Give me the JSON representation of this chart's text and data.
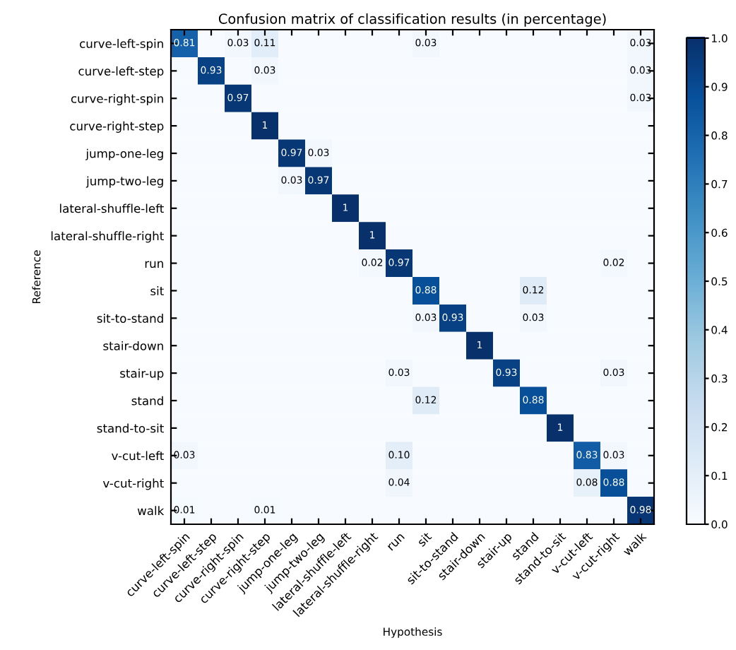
{
  "chart_data": {
    "type": "heatmap",
    "title": "Confusion matrix of classification results (in percentage)",
    "xlabel": "Hypothesis",
    "ylabel": "Reference",
    "categories": [
      "curve-left-spin",
      "curve-left-step",
      "curve-right-spin",
      "curve-right-step",
      "jump-one-leg",
      "jump-two-leg",
      "lateral-shuffle-left",
      "lateral-shuffle-right",
      "run",
      "sit",
      "sit-to-stand",
      "stair-down",
      "stair-up",
      "stand",
      "stand-to-sit",
      "v-cut-left",
      "v-cut-right",
      "walk"
    ],
    "y_categories": [
      "curve-left-spin",
      "curve-left-step",
      "curve-right-spin",
      "curve-right-step",
      "jump-one-leg",
      "jump-two-leg",
      "lateral-shuffle-left",
      "lateral-shuffle-right",
      "run",
      "sit",
      "sit-to-stand",
      "stair-down",
      "stair-up",
      "stand",
      "stand-to-sit",
      "v-cut-left",
      "v-cut-right",
      "walk"
    ],
    "cells": [
      [
        0.81,
        0,
        0.03,
        0.11,
        0,
        0,
        0,
        0,
        0,
        0.03,
        0,
        0,
        0,
        0,
        0,
        0,
        0,
        0.03
      ],
      [
        0,
        0.93,
        0,
        0.03,
        0,
        0,
        0,
        0,
        0,
        0,
        0,
        0,
        0,
        0,
        0,
        0,
        0,
        0.03
      ],
      [
        0,
        0,
        0.97,
        0,
        0,
        0,
        0,
        0,
        0,
        0,
        0,
        0,
        0,
        0,
        0,
        0,
        0,
        0.03
      ],
      [
        0,
        0,
        0,
        1,
        0,
        0,
        0,
        0,
        0,
        0,
        0,
        0,
        0,
        0,
        0,
        0,
        0,
        0
      ],
      [
        0,
        0,
        0,
        0,
        0.97,
        0.03,
        0,
        0,
        0,
        0,
        0,
        0,
        0,
        0,
        0,
        0,
        0,
        0
      ],
      [
        0,
        0,
        0,
        0,
        0.03,
        0.97,
        0,
        0,
        0,
        0,
        0,
        0,
        0,
        0,
        0,
        0,
        0,
        0
      ],
      [
        0,
        0,
        0,
        0,
        0,
        0,
        1,
        0,
        0,
        0,
        0,
        0,
        0,
        0,
        0,
        0,
        0,
        0
      ],
      [
        0,
        0,
        0,
        0,
        0,
        0,
        0,
        1,
        0,
        0,
        0,
        0,
        0,
        0,
        0,
        0,
        0,
        0
      ],
      [
        0,
        0,
        0,
        0,
        0,
        0,
        0,
        0.02,
        0.97,
        0,
        0,
        0,
        0,
        0,
        0,
        0,
        0.02,
        0
      ],
      [
        0,
        0,
        0,
        0,
        0,
        0,
        0,
        0,
        0,
        0.88,
        0,
        0,
        0,
        0.12,
        0,
        0,
        0,
        0
      ],
      [
        0,
        0,
        0,
        0,
        0,
        0,
        0,
        0,
        0,
        0.03,
        0.93,
        0,
        0,
        0.03,
        0,
        0,
        0,
        0
      ],
      [
        0,
        0,
        0,
        0,
        0,
        0,
        0,
        0,
        0,
        0,
        0,
        1,
        0,
        0,
        0,
        0,
        0,
        0
      ],
      [
        0,
        0,
        0,
        0,
        0,
        0,
        0,
        0,
        0.03,
        0,
        0,
        0,
        0.93,
        0,
        0,
        0,
        0.03,
        0
      ],
      [
        0,
        0,
        0,
        0,
        0,
        0,
        0,
        0,
        0,
        0.12,
        0,
        0,
        0,
        0.88,
        0,
        0,
        0,
        0
      ],
      [
        0,
        0,
        0,
        0,
        0,
        0,
        0,
        0,
        0,
        0,
        0,
        0,
        0,
        0,
        1,
        0,
        0,
        0
      ],
      [
        0.03,
        0,
        0,
        0,
        0,
        0,
        0,
        0,
        0.1,
        0,
        0,
        0,
        0,
        0,
        0,
        0.83,
        0.03,
        0
      ],
      [
        0,
        0,
        0,
        0,
        0,
        0,
        0,
        0,
        0.04,
        0,
        0,
        0,
        0,
        0,
        0,
        0.08,
        0.88,
        0
      ],
      [
        0.01,
        0,
        0,
        0.01,
        0,
        0,
        0,
        0,
        0,
        0,
        0,
        0,
        0,
        0,
        0,
        0,
        0,
        0.98
      ]
    ],
    "cell_labels": [
      [
        "0.81",
        null,
        "0.03",
        "0.11",
        null,
        null,
        null,
        null,
        null,
        "0.03",
        null,
        null,
        null,
        null,
        null,
        null,
        null,
        "0.03"
      ],
      [
        null,
        "0.93",
        null,
        "0.03",
        null,
        null,
        null,
        null,
        null,
        null,
        null,
        null,
        null,
        null,
        null,
        null,
        null,
        "0.03"
      ],
      [
        null,
        null,
        "0.97",
        null,
        null,
        null,
        null,
        null,
        null,
        null,
        null,
        null,
        null,
        null,
        null,
        null,
        null,
        "0.03"
      ],
      [
        null,
        null,
        null,
        "1",
        null,
        null,
        null,
        null,
        null,
        null,
        null,
        null,
        null,
        null,
        null,
        null,
        null,
        null
      ],
      [
        null,
        null,
        null,
        null,
        "0.97",
        "0.03",
        null,
        null,
        null,
        null,
        null,
        null,
        null,
        null,
        null,
        null,
        null,
        null
      ],
      [
        null,
        null,
        null,
        null,
        "0.03",
        "0.97",
        null,
        null,
        null,
        null,
        null,
        null,
        null,
        null,
        null,
        null,
        null,
        null
      ],
      [
        null,
        null,
        null,
        null,
        null,
        null,
        "1",
        null,
        null,
        null,
        null,
        null,
        null,
        null,
        null,
        null,
        null,
        null
      ],
      [
        null,
        null,
        null,
        null,
        null,
        null,
        null,
        "1",
        null,
        null,
        null,
        null,
        null,
        null,
        null,
        null,
        null,
        null
      ],
      [
        null,
        null,
        null,
        null,
        null,
        null,
        null,
        "0.02",
        "0.97",
        null,
        null,
        null,
        null,
        null,
        null,
        null,
        "0.02",
        null
      ],
      [
        null,
        null,
        null,
        null,
        null,
        null,
        null,
        null,
        null,
        "0.88",
        null,
        null,
        null,
        "0.12",
        null,
        null,
        null,
        null
      ],
      [
        null,
        null,
        null,
        null,
        null,
        null,
        null,
        null,
        null,
        "0.03",
        "0.93",
        null,
        null,
        "0.03",
        null,
        null,
        null,
        null
      ],
      [
        null,
        null,
        null,
        null,
        null,
        null,
        null,
        null,
        null,
        null,
        null,
        "1",
        null,
        null,
        null,
        null,
        null,
        null
      ],
      [
        null,
        null,
        null,
        null,
        null,
        null,
        null,
        null,
        "0.03",
        null,
        null,
        null,
        "0.93",
        null,
        null,
        null,
        "0.03",
        null
      ],
      [
        null,
        null,
        null,
        null,
        null,
        null,
        null,
        null,
        null,
        "0.12",
        null,
        null,
        null,
        "0.88",
        null,
        null,
        null,
        null
      ],
      [
        null,
        null,
        null,
        null,
        null,
        null,
        null,
        null,
        null,
        null,
        null,
        null,
        null,
        null,
        "1",
        null,
        null,
        null
      ],
      [
        "0.03",
        null,
        null,
        null,
        null,
        null,
        null,
        null,
        "0.10",
        null,
        null,
        null,
        null,
        null,
        null,
        "0.83",
        "0.03",
        null
      ],
      [
        null,
        null,
        null,
        null,
        null,
        null,
        null,
        null,
        "0.04",
        null,
        null,
        null,
        null,
        null,
        null,
        "0.08",
        "0.88",
        null
      ],
      [
        "0.01",
        null,
        null,
        "0.01",
        null,
        null,
        null,
        null,
        null,
        null,
        null,
        null,
        null,
        null,
        null,
        null,
        null,
        "0.98"
      ]
    ],
    "clim": [
      0,
      1
    ],
    "cticks": [
      {
        "value": 0,
        "label": "0.0"
      },
      0.1,
      0.2,
      0.3,
      0.4,
      0.5,
      0.6,
      0.7,
      0.8,
      0.9,
      {
        "value": 1,
        "label": "1.0"
      }
    ],
    "grid": false
  }
}
